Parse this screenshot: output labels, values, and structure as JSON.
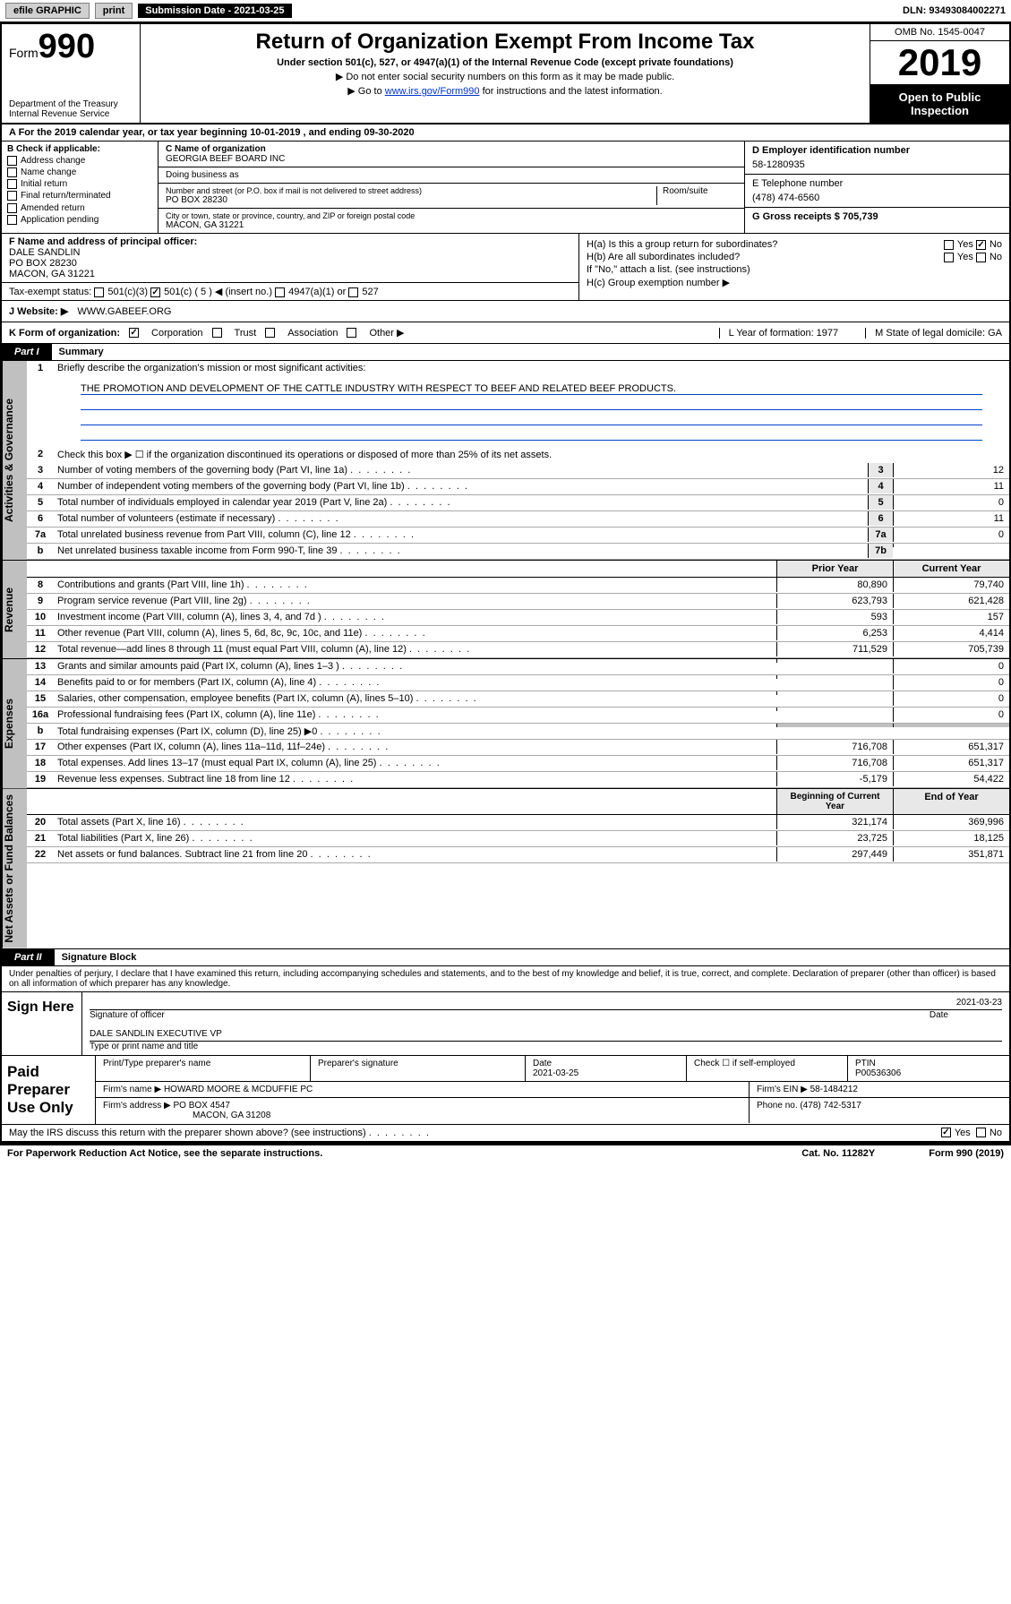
{
  "topbar": {
    "efile": "efile GRAPHIC",
    "print": "print",
    "sub_label": "Submission Date - 2021-03-25",
    "dln": "DLN: 93493084002271"
  },
  "header": {
    "form_word": "Form",
    "form_no": "990",
    "dept": "Department of the Treasury\nInternal Revenue Service",
    "title": "Return of Organization Exempt From Income Tax",
    "sub1": "Under section 501(c), 527, or 4947(a)(1) of the Internal Revenue Code (except private foundations)",
    "sub2": "▶ Do not enter social security numbers on this form as it may be made public.",
    "sub3_a": "▶ Go to ",
    "sub3_link": "www.irs.gov/Form990",
    "sub3_b": " for instructions and the latest information.",
    "omb": "OMB No. 1545-0047",
    "year": "2019",
    "open": "Open to Public Inspection"
  },
  "period": "A For the 2019 calendar year, or tax year beginning 10-01-2019     , and ending 09-30-2020",
  "box_b": {
    "hdr": "B Check if applicable:",
    "opts": [
      "Address change",
      "Name change",
      "Initial return",
      "Final return/terminated",
      "Amended return",
      "Application pending"
    ]
  },
  "box_c": {
    "name_lbl": "C Name of organization",
    "name": "GEORGIA BEEF BOARD INC",
    "dba_lbl": "Doing business as",
    "addr_lbl": "Number and street (or P.O. box if mail is not delivered to street address)",
    "room_lbl": "Room/suite",
    "addr": "PO BOX 28230",
    "city_lbl": "City or town, state or province, country, and ZIP or foreign postal code",
    "city": "MACON, GA  31221"
  },
  "box_d": {
    "lbl": "D Employer identification number",
    "val": "58-1280935"
  },
  "box_e": {
    "lbl": "E Telephone number",
    "val": "(478) 474-6560"
  },
  "box_g": {
    "lbl": "G Gross receipts $ 705,739"
  },
  "box_f": {
    "lbl": "F  Name and address of principal officer:",
    "name": "DALE SANDLIN",
    "addr1": "PO BOX 28230",
    "addr2": "MACON, GA  31221"
  },
  "tax_status": {
    "lbl": "Tax-exempt status:",
    "o1": "501(c)(3)",
    "o2": "501(c) ( 5 ) ◀ (insert no.)",
    "o3": "4947(a)(1) or",
    "o4": "527"
  },
  "box_h": {
    "ha": "H(a)  Is this a group return for subordinates?",
    "hb": "H(b)  Are all subordinates included?",
    "hb2": "If \"No,\" attach a list. (see instructions)",
    "hc": "H(c)  Group exemption number ▶",
    "yes": "Yes",
    "no": "No"
  },
  "site": {
    "lbl": "J Website: ▶",
    "val": "WWW.GABEEF.ORG"
  },
  "korg": {
    "lbl": "K Form of organization:",
    "opts": [
      "Corporation",
      "Trust",
      "Association",
      "Other ▶"
    ],
    "l": "L Year of formation: 1977",
    "m": "M State of legal domicile: GA"
  },
  "part1": {
    "lbl": "Part I",
    "title": "Summary"
  },
  "vtabs": {
    "gov": "Activities & Governance",
    "rev": "Revenue",
    "exp": "Expenses",
    "net": "Net Assets or Fund Balances"
  },
  "q1": {
    "lbl": "1",
    "text": "Briefly describe the organization's mission or most significant activities:",
    "mission": "THE PROMOTION AND DEVELOPMENT OF THE CATTLE INDUSTRY WITH RESPECT TO BEEF AND RELATED BEEF PRODUCTS."
  },
  "q2": {
    "lbl": "2",
    "text": "Check this box ▶ ☐  if the organization discontinued its operations or disposed of more than 25% of its net assets."
  },
  "lines_gov": [
    {
      "n": "3",
      "t": "Number of voting members of the governing body (Part VI, line 1a)",
      "box": "3",
      "v": "12"
    },
    {
      "n": "4",
      "t": "Number of independent voting members of the governing body (Part VI, line 1b)",
      "box": "4",
      "v": "11"
    },
    {
      "n": "5",
      "t": "Total number of individuals employed in calendar year 2019 (Part V, line 2a)",
      "box": "5",
      "v": "0"
    },
    {
      "n": "6",
      "t": "Total number of volunteers (estimate if necessary)",
      "box": "6",
      "v": "11"
    },
    {
      "n": "7a",
      "t": "Total unrelated business revenue from Part VIII, column (C), line 12",
      "box": "7a",
      "v": "0"
    },
    {
      "n": "b",
      "t": "Net unrelated business taxable income from Form 990-T, line 39",
      "box": "7b",
      "v": ""
    }
  ],
  "yrhdr": {
    "prior": "Prior Year",
    "current": "Current Year"
  },
  "lines_rev": [
    {
      "n": "8",
      "t": "Contributions and grants (Part VIII, line 1h)",
      "p": "80,890",
      "c": "79,740"
    },
    {
      "n": "9",
      "t": "Program service revenue (Part VIII, line 2g)",
      "p": "623,793",
      "c": "621,428"
    },
    {
      "n": "10",
      "t": "Investment income (Part VIII, column (A), lines 3, 4, and 7d )",
      "p": "593",
      "c": "157"
    },
    {
      "n": "11",
      "t": "Other revenue (Part VIII, column (A), lines 5, 6d, 8c, 9c, 10c, and 11e)",
      "p": "6,253",
      "c": "4,414"
    },
    {
      "n": "12",
      "t": "Total revenue—add lines 8 through 11 (must equal Part VIII, column (A), line 12)",
      "p": "711,529",
      "c": "705,739"
    }
  ],
  "lines_exp": [
    {
      "n": "13",
      "t": "Grants and similar amounts paid (Part IX, column (A), lines 1–3 )",
      "p": "",
      "c": "0"
    },
    {
      "n": "14",
      "t": "Benefits paid to or for members (Part IX, column (A), line 4)",
      "p": "",
      "c": "0"
    },
    {
      "n": "15",
      "t": "Salaries, other compensation, employee benefits (Part IX, column (A), lines 5–10)",
      "p": "",
      "c": "0"
    },
    {
      "n": "16a",
      "t": "Professional fundraising fees (Part IX, column (A), line 11e)",
      "p": "",
      "c": "0"
    },
    {
      "n": "b",
      "t": "Total fundraising expenses (Part IX, column (D), line 25) ▶0",
      "p": "GREY",
      "c": "GREY"
    },
    {
      "n": "17",
      "t": "Other expenses (Part IX, column (A), lines 11a–11d, 11f–24e)",
      "p": "716,708",
      "c": "651,317"
    },
    {
      "n": "18",
      "t": "Total expenses. Add lines 13–17 (must equal Part IX, column (A), line 25)",
      "p": "716,708",
      "c": "651,317"
    },
    {
      "n": "19",
      "t": "Revenue less expenses. Subtract line 18 from line 12",
      "p": "-5,179",
      "c": "54,422"
    }
  ],
  "yrhdr2": {
    "prior": "Beginning of Current Year",
    "current": "End of Year"
  },
  "lines_net": [
    {
      "n": "20",
      "t": "Total assets (Part X, line 16)",
      "p": "321,174",
      "c": "369,996"
    },
    {
      "n": "21",
      "t": "Total liabilities (Part X, line 26)",
      "p": "23,725",
      "c": "18,125"
    },
    {
      "n": "22",
      "t": "Net assets or fund balances. Subtract line 21 from line 20",
      "p": "297,449",
      "c": "351,871"
    }
  ],
  "part2": {
    "lbl": "Part II",
    "title": "Signature Block"
  },
  "perjury": "Under penalties of perjury, I declare that I have examined this return, including accompanying schedules and statements, and to the best of my knowledge and belief, it is true, correct, and complete. Declaration of preparer (other than officer) is based on all information of which preparer has any knowledge.",
  "sign": {
    "lbl": "Sign Here",
    "sig_lbl": "Signature of officer",
    "date": "2021-03-23",
    "date_lbl": "Date",
    "name": "DALE SANDLIN  EXECUTIVE VP",
    "name_lbl": "Type or print name and title"
  },
  "paid": {
    "lbl": "Paid Preparer Use Only",
    "h1": "Print/Type preparer's name",
    "h2": "Preparer's signature",
    "h3": "Date",
    "h3v": "2021-03-25",
    "h4": "Check ☐ if self-employed",
    "h5": "PTIN",
    "h5v": "P00536306",
    "firm_lbl": "Firm's name      ▶",
    "firm": "HOWARD MOORE & MCDUFFIE PC",
    "ein_lbl": "Firm's EIN ▶",
    "ein": "58-1484212",
    "addr_lbl": "Firm's address ▶",
    "addr": "PO BOX 4547",
    "addr2": "MACON, GA  31208",
    "phone_lbl": "Phone no.",
    "phone": "(478) 742-5317"
  },
  "discuss": {
    "q": "May the IRS discuss this return with the preparer shown above? (see instructions)",
    "yes": "Yes",
    "no": "No"
  },
  "footer": {
    "pra": "For Paperwork Reduction Act Notice, see the separate instructions.",
    "cat": "Cat. No. 11282Y",
    "form": "Form 990 (2019)"
  },
  "colors": {
    "black": "#000000",
    "grey": "#c0c0c0",
    "link": "#0033cc",
    "lightgrey": "#e8e8e8"
  }
}
